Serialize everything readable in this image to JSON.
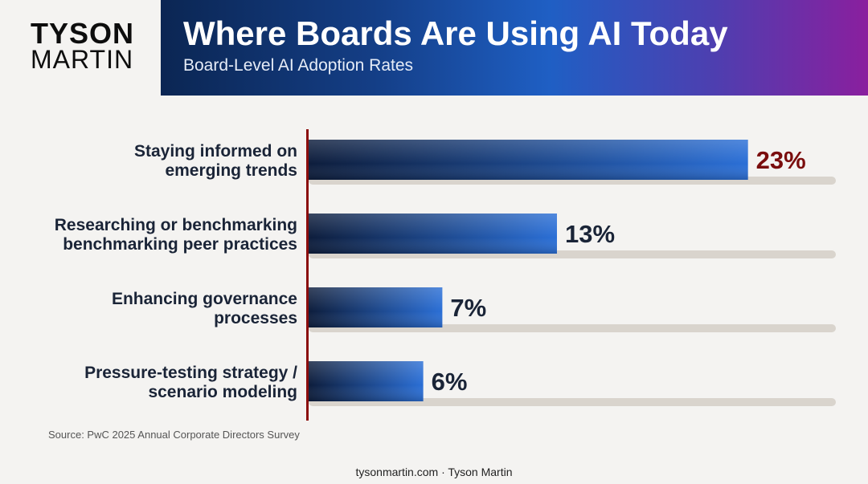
{
  "brand": {
    "line1": "TYSON",
    "line2": "MARTIN"
  },
  "header": {
    "title": "Where Boards Are Using AI Today",
    "subtitle": "Board-Level AI Adoption Rates"
  },
  "chart_data": {
    "type": "bar",
    "orientation": "horizontal",
    "categories": [
      [
        "Staying informed on",
        "emerging trends"
      ],
      [
        "Researching or benchmarking",
        "benchmarking  peer practices"
      ],
      [
        "Enhancing governance",
        "processes"
      ],
      [
        "Pressure-testing strategy /",
        "scenario modeling"
      ]
    ],
    "values": [
      23,
      13,
      7,
      6
    ],
    "value_labels": [
      "23%",
      "13%",
      "7%",
      "6%"
    ],
    "xlim": [
      0,
      27.6
    ],
    "unit": "%",
    "grid": false,
    "legend": "none",
    "colors": {
      "bar_dark": "#0d1d3c",
      "bar_light": "#2b6fd6",
      "track": "#d9d4cd",
      "axis": "#8b0d0d",
      "highlight_label": "#7a0d0d",
      "label": "#1a2437"
    }
  },
  "source": "Source: PwC 2025 Annual Corporate Directors Survey",
  "footer": "tysonmartin.com  · Tyson Martin"
}
